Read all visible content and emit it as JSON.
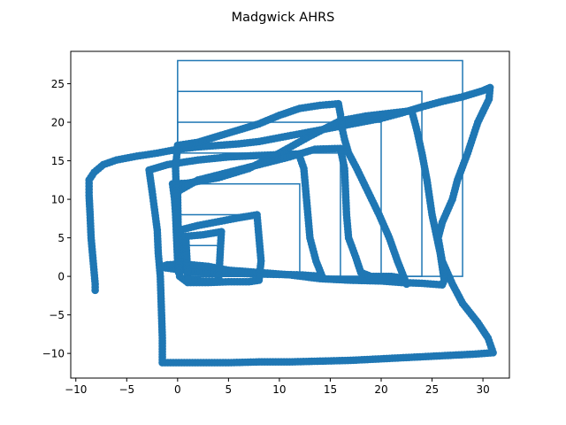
{
  "chart_data": {
    "type": "scatter",
    "title": "Madgwick AHRS",
    "xlabel": "",
    "ylabel": "",
    "xlim": [
      -10.5,
      32.6
    ],
    "ylim": [
      -13.2,
      29.2
    ],
    "grid": false,
    "x_ticks": [
      -10,
      -5,
      0,
      5,
      10,
      15,
      20,
      25,
      30
    ],
    "y_ticks": [
      -10,
      -5,
      0,
      5,
      10,
      15,
      20,
      25
    ],
    "colors": {
      "series": "#1f77b4",
      "axes": "#000000",
      "background": "#ffffff"
    },
    "series": [
      {
        "kind": "reference-squares",
        "style": "line",
        "squares": [
          {
            "x0": 0,
            "y0": 0,
            "size": 4
          },
          {
            "x0": 0,
            "y0": 0,
            "size": 8
          },
          {
            "x0": 0,
            "y0": 0,
            "size": 12
          },
          {
            "x0": 0,
            "y0": 0,
            "size": 16
          },
          {
            "x0": 0,
            "y0": 0,
            "size": 20
          },
          {
            "x0": 0,
            "y0": 0,
            "size": 24
          },
          {
            "x0": 0,
            "y0": 0,
            "size": 28
          }
        ]
      },
      {
        "kind": "estimated-trajectory",
        "style": "markers",
        "points": [
          [
            -8.1,
            -1.8
          ],
          [
            -8.1,
            -1.0
          ],
          [
            -8.3,
            2.0
          ],
          [
            -8.5,
            5.0
          ],
          [
            -8.6,
            8.0
          ],
          [
            -8.7,
            10.5
          ],
          [
            -8.7,
            12.5
          ],
          [
            -8.2,
            13.5
          ],
          [
            -7.3,
            14.5
          ],
          [
            -6.0,
            15.1
          ],
          [
            -4.0,
            15.6
          ],
          [
            -2.0,
            16.0
          ],
          [
            0.0,
            16.5
          ],
          [
            2.0,
            16.8
          ],
          [
            4.0,
            17.0
          ],
          [
            6.0,
            17.2
          ],
          [
            8.0,
            17.5
          ],
          [
            10.0,
            18.0
          ],
          [
            12.0,
            18.5
          ],
          [
            14.0,
            19.0
          ],
          [
            16.0,
            19.5
          ],
          [
            18.0,
            20.0
          ],
          [
            20.0,
            20.5
          ],
          [
            22.0,
            21.2
          ],
          [
            24.0,
            22.0
          ],
          [
            26.0,
            22.7
          ],
          [
            28.0,
            23.3
          ],
          [
            30.0,
            24.1
          ],
          [
            30.7,
            24.5
          ],
          [
            30.6,
            23.0
          ],
          [
            29.5,
            20.0
          ],
          [
            28.5,
            16.0
          ],
          [
            27.5,
            12.5
          ],
          [
            27.0,
            10.0
          ],
          [
            26.0,
            7.0
          ],
          [
            25.6,
            5.0
          ],
          [
            26.0,
            2.0
          ],
          [
            27.0,
            -1.0
          ],
          [
            28.0,
            -3.5
          ],
          [
            29.5,
            -6.0
          ],
          [
            30.5,
            -8.0
          ],
          [
            31.0,
            -9.9
          ],
          [
            29.0,
            -10.1
          ],
          [
            26.0,
            -10.3
          ],
          [
            23.0,
            -10.5
          ],
          [
            20.0,
            -10.7
          ],
          [
            17.0,
            -10.9
          ],
          [
            14.0,
            -11.0
          ],
          [
            11.0,
            -11.1
          ],
          [
            8.0,
            -11.1
          ],
          [
            5.0,
            -11.2
          ],
          [
            2.0,
            -11.2
          ],
          [
            -1.5,
            -11.2
          ],
          [
            -1.5,
            -8.0
          ],
          [
            -1.6,
            -4.0
          ],
          [
            -1.7,
            0.0
          ],
          [
            -1.9,
            3.0
          ],
          [
            -2.0,
            6.0
          ],
          [
            -2.3,
            9.0
          ],
          [
            -2.5,
            11.0
          ],
          [
            -2.8,
            13.8
          ],
          [
            -1.0,
            14.5
          ],
          [
            2.0,
            15.1
          ],
          [
            5.0,
            15.5
          ],
          [
            8.0,
            15.7
          ],
          [
            10.0,
            15.8
          ],
          [
            11.9,
            15.9
          ],
          [
            12.4,
            14.0
          ],
          [
            12.6,
            11.0
          ],
          [
            12.8,
            8.0
          ],
          [
            13.0,
            5.0
          ],
          [
            13.6,
            2.0
          ],
          [
            14.2,
            0.0
          ],
          [
            12.0,
            0.2
          ],
          [
            8.0,
            0.3
          ],
          [
            4.0,
            0.5
          ],
          [
            1.5,
            0.6
          ],
          [
            0.5,
            0.8
          ],
          [
            -1.7,
            1.2
          ],
          [
            -1.0,
            1.5
          ],
          [
            0.5,
            1.6
          ],
          [
            3.0,
            1.3
          ],
          [
            5.0,
            0.8
          ],
          [
            8.0,
            0.5
          ],
          [
            11.0,
            0.2
          ],
          [
            14.0,
            -0.3
          ],
          [
            17.0,
            -0.5
          ],
          [
            20.0,
            -0.6
          ],
          [
            22.0,
            -0.8
          ],
          [
            24.0,
            -0.9
          ],
          [
            26.0,
            -1.1
          ],
          [
            26.2,
            -0.5
          ],
          [
            25.8,
            3.0
          ],
          [
            25.0,
            8.0
          ],
          [
            24.5,
            12.5
          ],
          [
            24.0,
            16.0
          ],
          [
            23.5,
            19.0
          ],
          [
            23.0,
            21.5
          ],
          [
            21.0,
            21.2
          ],
          [
            18.5,
            20.8
          ],
          [
            16.0,
            20.2
          ],
          [
            13.0,
            18.2
          ],
          [
            10.0,
            16.0
          ],
          [
            7.0,
            14.0
          ],
          [
            4.0,
            12.8
          ],
          [
            1.0,
            12.1
          ],
          [
            -0.5,
            12.0
          ],
          [
            -0.3,
            10.0
          ],
          [
            -0.2,
            8.0
          ],
          [
            -0.1,
            5.0
          ],
          [
            0.0,
            2.0
          ],
          [
            0.1,
            0.5
          ],
          [
            0.0,
            11.0
          ],
          [
            2.0,
            12.5
          ],
          [
            5.0,
            13.5
          ],
          [
            8.0,
            14.5
          ],
          [
            11.0,
            15.5
          ],
          [
            13.5,
            16.5
          ],
          [
            16.0,
            16.6
          ],
          [
            16.4,
            14.0
          ],
          [
            16.5,
            11.0
          ],
          [
            16.6,
            8.0
          ],
          [
            16.8,
            5.0
          ],
          [
            17.5,
            2.5
          ],
          [
            18.0,
            0.5
          ],
          [
            19.0,
            0.0
          ],
          [
            20.0,
            0.0
          ],
          [
            21.0,
            0.0
          ],
          [
            22.0,
            -0.2
          ],
          [
            22.5,
            -1.0
          ],
          [
            21.6,
            2.0
          ],
          [
            20.8,
            5.0
          ],
          [
            19.8,
            8.0
          ],
          [
            18.7,
            11.0
          ],
          [
            17.6,
            14.0
          ],
          [
            16.8,
            16.0
          ],
          [
            16.4,
            17.8
          ],
          [
            16.2,
            19.0
          ],
          [
            16.0,
            21.0
          ],
          [
            15.8,
            22.4
          ],
          [
            14.0,
            22.2
          ],
          [
            12.0,
            21.8
          ],
          [
            10.0,
            20.9
          ],
          [
            8.0,
            19.8
          ],
          [
            6.0,
            19.0
          ],
          [
            4.0,
            18.2
          ],
          [
            2.0,
            17.4
          ],
          [
            0.0,
            17.0
          ],
          [
            -0.2,
            14.0
          ],
          [
            -0.1,
            10.0
          ],
          [
            0.0,
            6.0
          ],
          [
            0.1,
            3.0
          ],
          [
            0.2,
            0.0
          ],
          [
            1.0,
            -0.8
          ],
          [
            3.0,
            -0.8
          ],
          [
            5.0,
            -0.7
          ],
          [
            7.0,
            -0.7
          ],
          [
            8.0,
            -0.5
          ],
          [
            8.2,
            2.0
          ],
          [
            8.0,
            5.0
          ],
          [
            7.8,
            8.0
          ],
          [
            6.0,
            7.6
          ],
          [
            4.0,
            7.1
          ],
          [
            2.0,
            6.6
          ],
          [
            0.2,
            6.0
          ],
          [
            0.6,
            4.0
          ],
          [
            0.8,
            2.0
          ],
          [
            1.0,
            0.0
          ],
          [
            0.8,
            5.2
          ],
          [
            2.5,
            5.4
          ],
          [
            4.3,
            5.8
          ],
          [
            4.2,
            3.5
          ],
          [
            4.1,
            1.0
          ],
          [
            4.0,
            -0.6
          ],
          [
            2.5,
            -0.6
          ],
          [
            1.0,
            -0.4
          ]
        ]
      }
    ]
  }
}
